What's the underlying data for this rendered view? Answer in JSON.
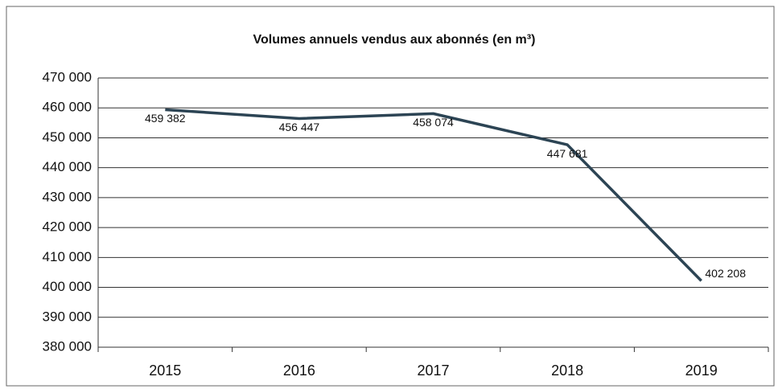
{
  "chart_data": {
    "type": "line",
    "title": "Volumes annuels vendus aux abonnés (en m³)",
    "categories": [
      "2015",
      "2016",
      "2017",
      "2018",
      "2019"
    ],
    "series": [
      {
        "name": "Volumes annuels vendus aux abonnés",
        "color": "#2c4454",
        "values": [
          459382,
          456447,
          458074,
          447681,
          402208
        ],
        "value_labels": [
          "459 382",
          "456 447",
          "458 074",
          "447 681",
          "402 208"
        ]
      }
    ],
    "ylim": [
      380000,
      470000
    ],
    "yticks": [
      {
        "value": 380000,
        "label": "380 000"
      },
      {
        "value": 390000,
        "label": "390 000"
      },
      {
        "value": 400000,
        "label": "400 000"
      },
      {
        "value": 410000,
        "label": "410 000"
      },
      {
        "value": 420000,
        "label": "420 000"
      },
      {
        "value": 430000,
        "label": "430 000"
      },
      {
        "value": 440000,
        "label": "440 000"
      },
      {
        "value": 450000,
        "label": "450 000"
      },
      {
        "value": 460000,
        "label": "460 000"
      },
      {
        "value": 470000,
        "label": "470 000"
      }
    ],
    "grid": true
  }
}
